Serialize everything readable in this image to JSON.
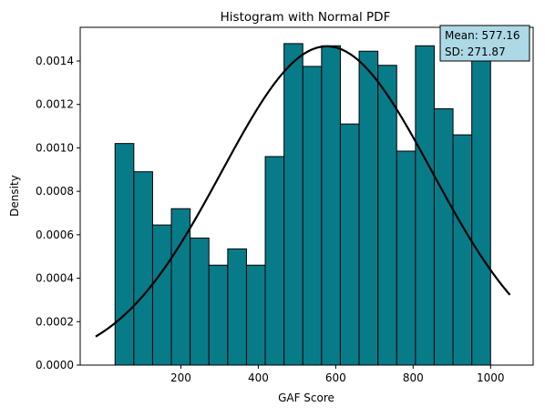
{
  "chart_data": {
    "type": "bar",
    "title": "Histogram with Normal PDF",
    "xlabel": "GAF Score",
    "ylabel": "Density",
    "xlim": [
      -60,
      1110
    ],
    "ylim": [
      0,
      0.001555
    ],
    "grid": false,
    "x_ticks": [
      200,
      400,
      600,
      800,
      1000
    ],
    "x_tick_labels": [
      "200",
      "400",
      "600",
      "800",
      "1000"
    ],
    "y_ticks": [
      0,
      0.0002,
      0.0004,
      0.0006,
      0.0008,
      0.001,
      0.0012,
      0.0014
    ],
    "y_tick_labels": [
      "0.0000",
      "0.0002",
      "0.0004",
      "0.0006",
      "0.0008",
      "0.0010",
      "0.0012",
      "0.0014"
    ],
    "bar_color": "#087b89",
    "bar_edge_color": "#000000",
    "bins": [
      {
        "start": 30,
        "end": 78.5,
        "density": 0.00102
      },
      {
        "start": 78.5,
        "end": 127,
        "density": 0.00089
      },
      {
        "start": 127,
        "end": 175.5,
        "density": 0.000645
      },
      {
        "start": 175.5,
        "end": 224,
        "density": 0.00072
      },
      {
        "start": 224,
        "end": 272.5,
        "density": 0.000585
      },
      {
        "start": 272.5,
        "end": 321,
        "density": 0.00046
      },
      {
        "start": 321,
        "end": 369.5,
        "density": 0.000535
      },
      {
        "start": 369.5,
        "end": 418,
        "density": 0.00046
      },
      {
        "start": 418,
        "end": 466.5,
        "density": 0.00096
      },
      {
        "start": 466.5,
        "end": 515,
        "density": 0.00148
      },
      {
        "start": 515,
        "end": 563.5,
        "density": 0.001375
      },
      {
        "start": 563.5,
        "end": 612,
        "density": 0.00147
      },
      {
        "start": 612,
        "end": 660.5,
        "density": 0.00111
      },
      {
        "start": 660.5,
        "end": 709,
        "density": 0.001445
      },
      {
        "start": 709,
        "end": 757.5,
        "density": 0.00138
      },
      {
        "start": 757.5,
        "end": 806,
        "density": 0.000985
      },
      {
        "start": 806,
        "end": 854.5,
        "density": 0.00147
      },
      {
        "start": 854.5,
        "end": 903,
        "density": 0.00118
      },
      {
        "start": 903,
        "end": 951.5,
        "density": 0.00106
      },
      {
        "start": 951.5,
        "end": 1000,
        "density": 0.00145
      }
    ],
    "normal_pdf": {
      "mean": 577.16,
      "sd": 271.87,
      "x_range": [
        -20,
        1050
      ],
      "color": "#000000"
    },
    "stats_box": {
      "line1": "Mean: 577.16",
      "line2": "SD: 271.87",
      "background": "#add8e6",
      "placement": "top-right"
    }
  }
}
